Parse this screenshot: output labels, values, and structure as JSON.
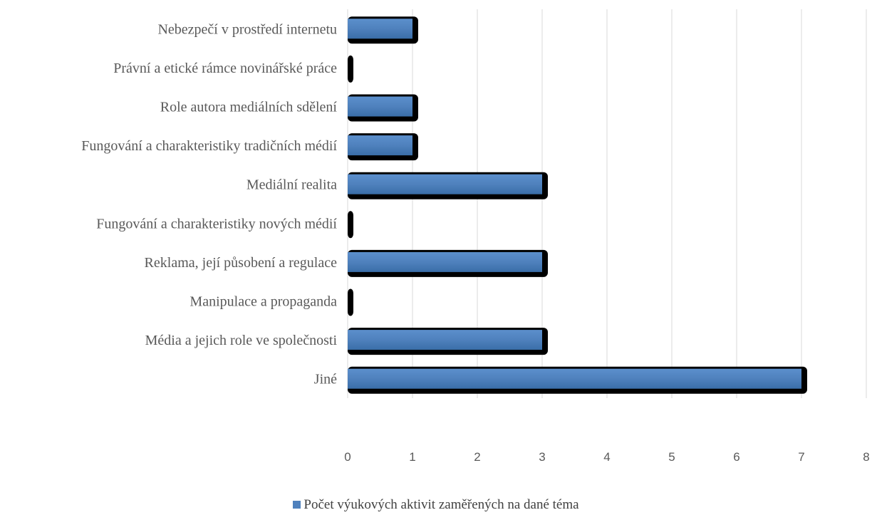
{
  "chart_data": {
    "type": "bar",
    "orientation": "horizontal",
    "categories": [
      "Nebezpečí v prostředí internetu",
      "Právní a etické rámce novinářské práce",
      "Role autora mediálních sdělení",
      "Fungování a charakteristiky tradičních médií",
      "Mediální realita",
      "Fungování a charakteristiky nových médií",
      "Reklama, její působení a regulace",
      "Manipulace a propaganda",
      "Média a jejich role ve společnosti",
      "Jiné"
    ],
    "series": [
      {
        "name": "Počet výukových aktivit zaměřených na dané téma",
        "values": [
          1,
          0,
          1,
          1,
          3,
          0,
          3,
          0,
          3,
          7
        ],
        "color": "#4f81bd"
      }
    ],
    "xlim": [
      0,
      8
    ],
    "xticks": [
      "0",
      "1",
      "2",
      "3",
      "4",
      "5",
      "6",
      "7",
      "8"
    ],
    "grid": "vertical",
    "legend_position": "bottom"
  },
  "legend": {
    "label": "Počet výukových aktivit zaměřených na dané téma"
  }
}
